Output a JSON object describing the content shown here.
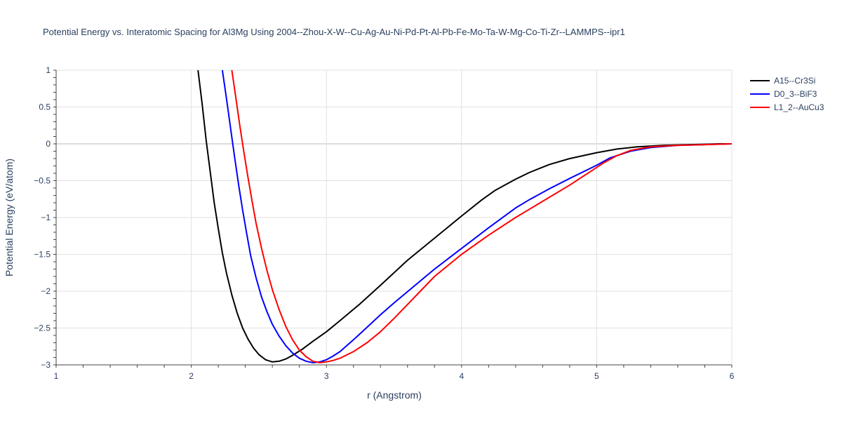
{
  "chart_data": {
    "type": "line",
    "title": "Potential Energy vs. Interatomic Spacing for Al3Mg Using 2004--Zhou-X-W--Cu-Ag-Au-Ni-Pd-Pt-Al-Pb-Fe-Mo-Ta-W-Mg-Co-Ti-Zr--LAMMPS--ipr1",
    "xlabel": "r (Angstrom)",
    "ylabel": "Potential Energy (eV/atom)",
    "xlim": [
      1,
      6
    ],
    "ylim": [
      -3,
      1
    ],
    "xticks": [
      1,
      2,
      3,
      4,
      5,
      6
    ],
    "xtick_labels": [
      "1",
      "2",
      "3",
      "4",
      "5",
      "6"
    ],
    "yticks": [
      1,
      0.5,
      0,
      -0.5,
      -1,
      -1.5,
      -2,
      -2.5,
      -3
    ],
    "ytick_labels": [
      "1",
      "0.5",
      "0",
      "−0.5",
      "−1",
      "−1.5",
      "−2",
      "−2.5",
      "−3"
    ],
    "grid": true,
    "legend_position": "top-right",
    "series": [
      {
        "name": "A15--Cr3Si",
        "color": "#000000",
        "x": [
          2.05,
          2.08,
          2.11,
          2.14,
          2.17,
          2.2,
          2.23,
          2.26,
          2.3,
          2.34,
          2.38,
          2.42,
          2.46,
          2.5,
          2.55,
          2.6,
          2.65,
          2.7,
          2.75,
          2.82,
          2.9,
          3.0,
          3.1,
          3.25,
          3.4,
          3.6,
          3.8,
          4.0,
          4.15,
          4.25,
          4.4,
          4.5,
          4.65,
          4.8,
          5.0,
          5.15,
          5.3,
          5.5,
          5.7,
          5.9,
          6.0
        ],
        "y": [
          1.0,
          0.55,
          0.05,
          -0.38,
          -0.8,
          -1.15,
          -1.48,
          -1.75,
          -2.05,
          -2.3,
          -2.5,
          -2.65,
          -2.77,
          -2.86,
          -2.93,
          -2.96,
          -2.95,
          -2.92,
          -2.87,
          -2.79,
          -2.68,
          -2.55,
          -2.4,
          -2.17,
          -1.92,
          -1.58,
          -1.28,
          -0.98,
          -0.76,
          -0.63,
          -0.48,
          -0.39,
          -0.28,
          -0.2,
          -0.12,
          -0.07,
          -0.04,
          -0.02,
          -0.01,
          0.0,
          0.0
        ]
      },
      {
        "name": "D0_3--BiF3",
        "color": "#0000ff",
        "x": [
          2.23,
          2.26,
          2.29,
          2.32,
          2.35,
          2.38,
          2.41,
          2.44,
          2.48,
          2.52,
          2.56,
          2.6,
          2.65,
          2.7,
          2.75,
          2.8,
          2.85,
          2.9,
          2.95,
          3.0,
          3.05,
          3.1,
          3.2,
          3.3,
          3.4,
          3.5,
          3.65,
          3.8,
          4.0,
          4.2,
          4.4,
          4.5,
          4.65,
          4.8,
          5.0,
          5.1,
          5.25,
          5.4,
          5.6,
          5.8,
          6.0
        ],
        "y": [
          1.0,
          0.62,
          0.22,
          -0.17,
          -0.55,
          -0.9,
          -1.22,
          -1.52,
          -1.82,
          -2.08,
          -2.28,
          -2.45,
          -2.61,
          -2.74,
          -2.84,
          -2.91,
          -2.95,
          -2.97,
          -2.96,
          -2.93,
          -2.88,
          -2.82,
          -2.66,
          -2.49,
          -2.32,
          -2.16,
          -1.93,
          -1.7,
          -1.42,
          -1.14,
          -0.87,
          -0.76,
          -0.61,
          -0.47,
          -0.29,
          -0.19,
          -0.1,
          -0.05,
          -0.02,
          -0.01,
          0.0
        ]
      },
      {
        "name": "L1_2--AuCu3",
        "color": "#ff0000",
        "x": [
          2.3,
          2.33,
          2.36,
          2.39,
          2.42,
          2.45,
          2.48,
          2.52,
          2.56,
          2.6,
          2.65,
          2.7,
          2.75,
          2.8,
          2.85,
          2.9,
          2.95,
          3.0,
          3.05,
          3.1,
          3.2,
          3.3,
          3.4,
          3.5,
          3.6,
          3.7,
          3.8,
          4.0,
          4.2,
          4.4,
          4.6,
          4.8,
          4.95,
          5.05,
          5.15,
          5.25,
          5.4,
          5.6,
          5.8,
          6.0
        ],
        "y": [
          1.0,
          0.62,
          0.24,
          -0.12,
          -0.46,
          -0.78,
          -1.08,
          -1.42,
          -1.72,
          -1.98,
          -2.25,
          -2.48,
          -2.66,
          -2.8,
          -2.89,
          -2.95,
          -2.97,
          -2.96,
          -2.94,
          -2.91,
          -2.82,
          -2.7,
          -2.55,
          -2.37,
          -2.18,
          -1.99,
          -1.8,
          -1.5,
          -1.24,
          -1.0,
          -0.78,
          -0.56,
          -0.38,
          -0.26,
          -0.16,
          -0.09,
          -0.04,
          -0.02,
          -0.01,
          0.0
        ]
      }
    ]
  }
}
